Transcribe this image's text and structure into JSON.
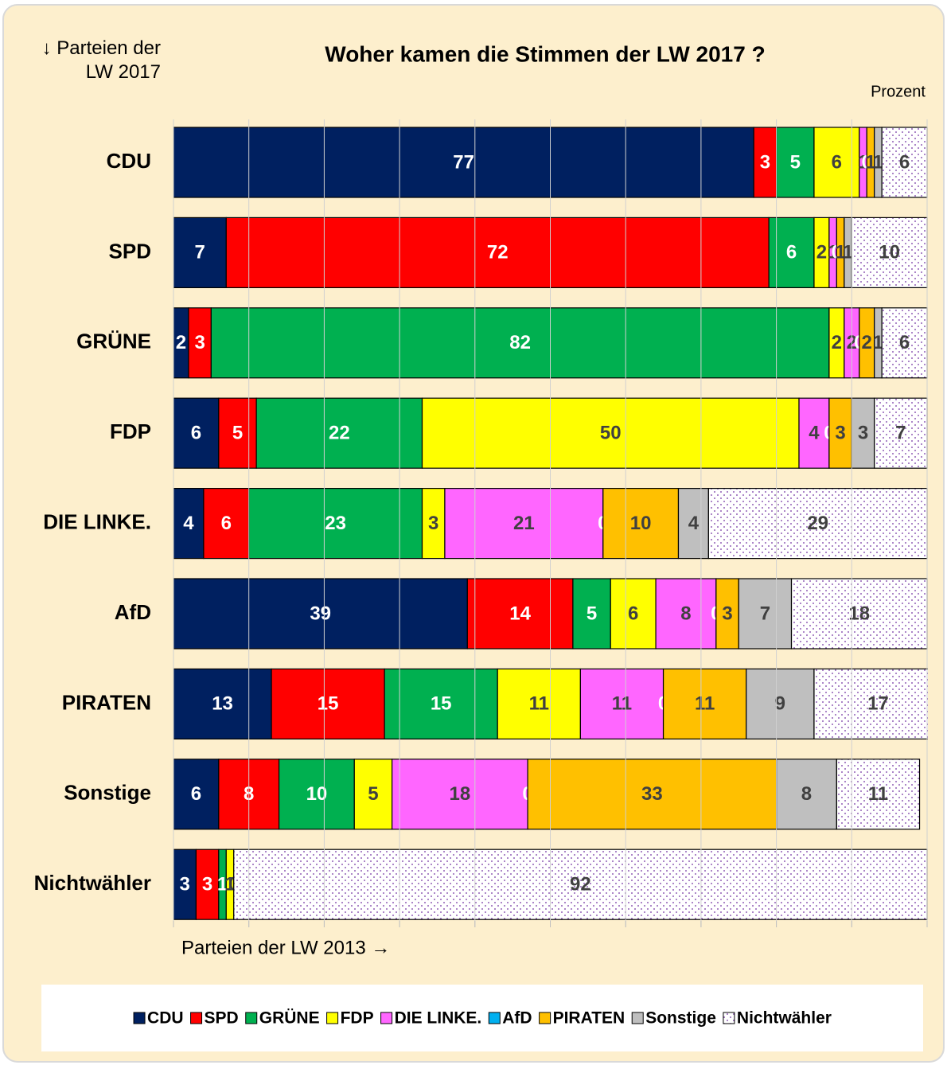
{
  "chart_data": {
    "type": "stacked-bar-horizontal",
    "title": "Woher kamen die Stimmen der LW 2017 ?",
    "y_axis_label": "↓ Parteien der LW 2017",
    "x_axis_label": "Parteien der LW 2013 →",
    "unit_label": "Prozent",
    "categories": [
      "CDU",
      "SPD",
      "GRÜNE",
      "FDP",
      "DIE LINKE.",
      "AfD",
      "PIRATEN",
      "Sonstige",
      "Nichtwähler"
    ],
    "series": [
      {
        "name": "CDU",
        "color": "#002060",
        "values": [
          77,
          7,
          2,
          6,
          4,
          39,
          13,
          6,
          3
        ]
      },
      {
        "name": "SPD",
        "color": "#ff0000",
        "values": [
          3,
          72,
          3,
          5,
          6,
          14,
          15,
          8,
          3
        ]
      },
      {
        "name": "GRÜNE",
        "color": "#00b050",
        "values": [
          5,
          6,
          82,
          22,
          23,
          5,
          15,
          10,
          1
        ]
      },
      {
        "name": "FDP",
        "color": "#ffff00",
        "values": [
          6,
          2,
          2,
          50,
          3,
          6,
          11,
          5,
          1
        ]
      },
      {
        "name": "DIE LINKE.",
        "color": "#ff66ff",
        "values": [
          1,
          1,
          2,
          4,
          21,
          8,
          11,
          18,
          0
        ]
      },
      {
        "name": "AfD",
        "color": "#00b0f0",
        "values": [
          0,
          0,
          0,
          0,
          0,
          0,
          0,
          0,
          0
        ]
      },
      {
        "name": "PIRATEN",
        "color": "#ffc000",
        "values": [
          1,
          1,
          2,
          3,
          10,
          3,
          11,
          33,
          0
        ]
      },
      {
        "name": "Sonstige",
        "color": "#bfbfbf",
        "values": [
          1,
          1,
          1,
          3,
          4,
          7,
          9,
          8,
          0
        ]
      },
      {
        "name": "Nichtwähler",
        "color": "pattern",
        "values": [
          6,
          10,
          6,
          7,
          29,
          18,
          17,
          11,
          92
        ]
      }
    ],
    "xlim": [
      0,
      100
    ],
    "xticks": [
      0,
      10,
      20,
      30,
      40,
      50,
      60,
      70,
      80,
      90,
      100
    ],
    "grid": true,
    "legend": "bottom"
  }
}
